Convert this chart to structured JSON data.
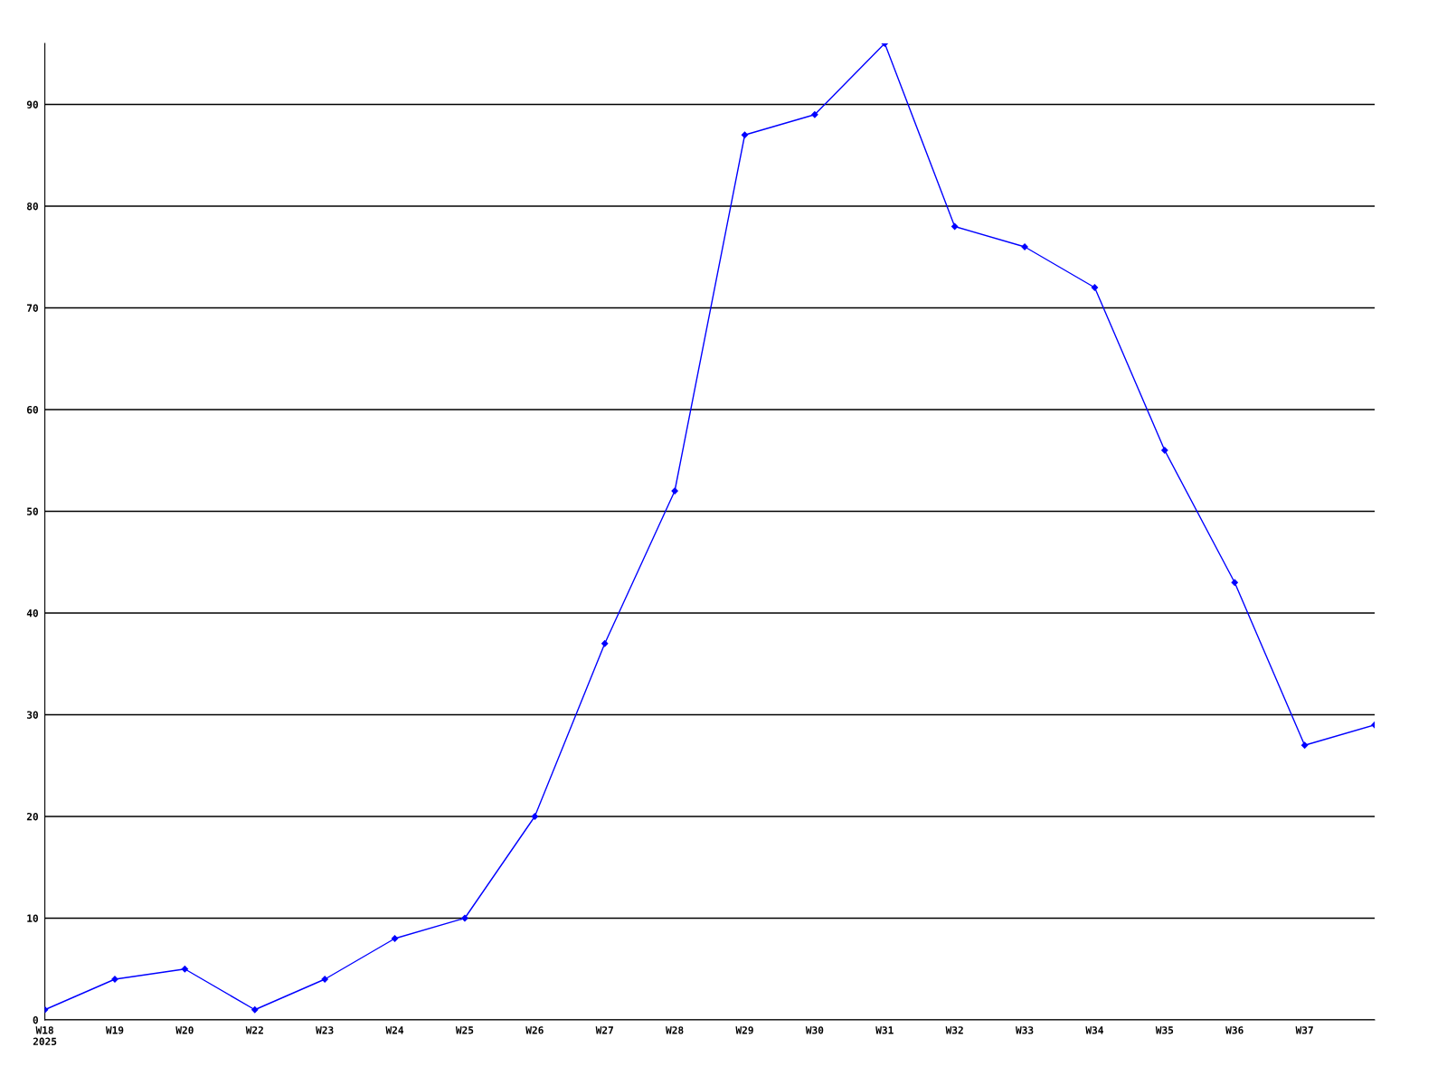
{
  "chart_data": {
    "type": "line",
    "categories": [
      "W18\n2025",
      "W19",
      "W20",
      "W22",
      "W23",
      "W24",
      "W25",
      "W26",
      "W27",
      "W28",
      "W29",
      "W30",
      "W31",
      "W32",
      "W33",
      "W34",
      "W35",
      "W36",
      "W37",
      null
    ],
    "series": [
      {
        "color": "#0000ff",
        "values": [
          1,
          4,
          5,
          1,
          4,
          8,
          10,
          20,
          37,
          52,
          87,
          89,
          96,
          78,
          76,
          72,
          56,
          43,
          27,
          29
        ]
      }
    ],
    "ylim": [
      0,
      96
    ],
    "yticks": [
      0,
      10,
      20,
      30,
      40,
      50,
      60,
      70,
      80,
      90
    ],
    "grid": "y",
    "marker": "diamond",
    "line_style": "solid"
  }
}
